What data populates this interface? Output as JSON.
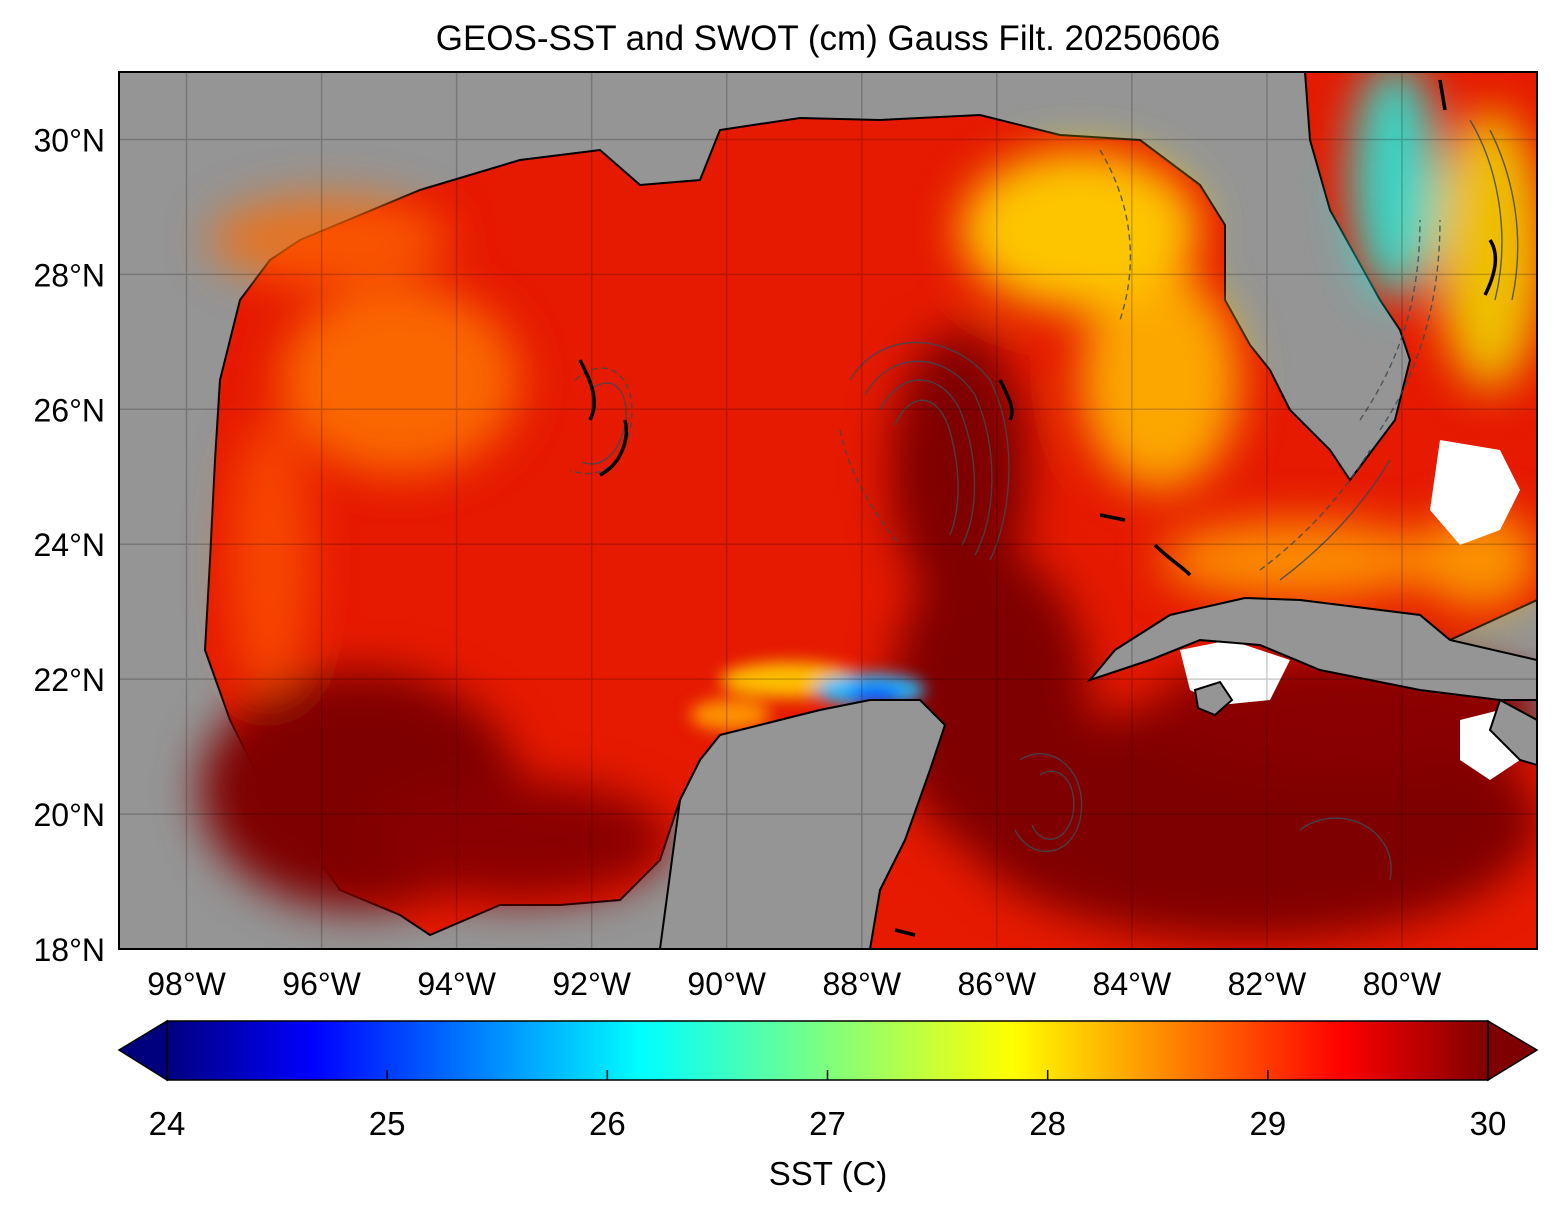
{
  "title": "GEOS-SST  and SWOT (cm) Gauss Filt. 20250606",
  "map": {
    "lon_range": [
      -99,
      -78
    ],
    "lat_range": [
      18,
      31
    ],
    "lat_ticks": [
      {
        "value": 18,
        "label": "18°N"
      },
      {
        "value": 20,
        "label": "20°N"
      },
      {
        "value": 22,
        "label": "22°N"
      },
      {
        "value": 24,
        "label": "24°N"
      },
      {
        "value": 26,
        "label": "26°N"
      },
      {
        "value": 28,
        "label": "28°N"
      },
      {
        "value": 30,
        "label": "30°N"
      }
    ],
    "lon_ticks": [
      {
        "value": -98,
        "label": "98°W"
      },
      {
        "value": -96,
        "label": "96°W"
      },
      {
        "value": -94,
        "label": "94°W"
      },
      {
        "value": -92,
        "label": "92°W"
      },
      {
        "value": -90,
        "label": "90°W"
      },
      {
        "value": -88,
        "label": "88°W"
      },
      {
        "value": -86,
        "label": "86°W"
      },
      {
        "value": -84,
        "label": "84°W"
      },
      {
        "value": -82,
        "label": "82°W"
      },
      {
        "value": -80,
        "label": "80°W"
      }
    ],
    "land_color": "#959595",
    "gridlines": true
  },
  "colorbar": {
    "label": "SST (C)",
    "min": 24,
    "max": 30,
    "extend": "both",
    "colormap": "jet",
    "ticks": [
      {
        "value": 24,
        "label": "24"
      },
      {
        "value": 25,
        "label": "25"
      },
      {
        "value": 26,
        "label": "26"
      },
      {
        "value": 27,
        "label": "27"
      },
      {
        "value": 28,
        "label": "28"
      },
      {
        "value": 29,
        "label": "29"
      },
      {
        "value": 30,
        "label": "30"
      }
    ],
    "stops": [
      {
        "offset": 0.0,
        "color": "#00007f"
      },
      {
        "offset": 0.11,
        "color": "#0000ff"
      },
      {
        "offset": 0.36,
        "color": "#00ffff"
      },
      {
        "offset": 0.5,
        "color": "#7fff7f"
      },
      {
        "offset": 0.64,
        "color": "#ffff00"
      },
      {
        "offset": 0.89,
        "color": "#ff0000"
      },
      {
        "offset": 1.0,
        "color": "#7f0000"
      }
    ]
  }
}
